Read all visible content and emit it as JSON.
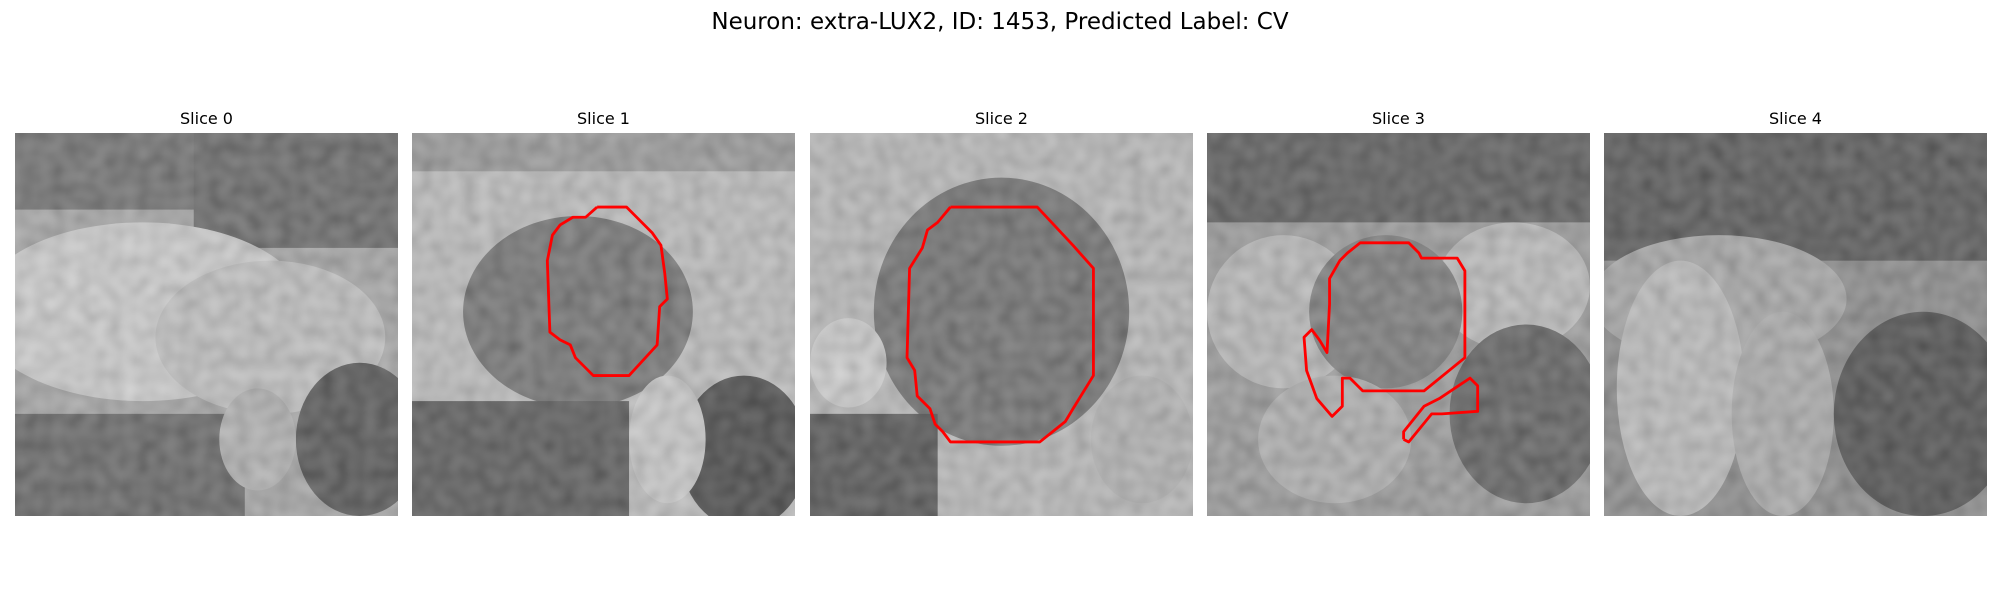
{
  "figure": {
    "title": "Neuron: extra-LUX2, ID: 1453, Predicted Label: CV"
  },
  "panels": [
    {
      "title": "Slice 0"
    },
    {
      "title": "Slice 1"
    },
    {
      "title": "Slice 2"
    },
    {
      "title": "Slice 3"
    },
    {
      "title": "Slice 4"
    }
  ],
  "colors": {
    "contour": "#ff0000",
    "background": "#ffffff"
  }
}
